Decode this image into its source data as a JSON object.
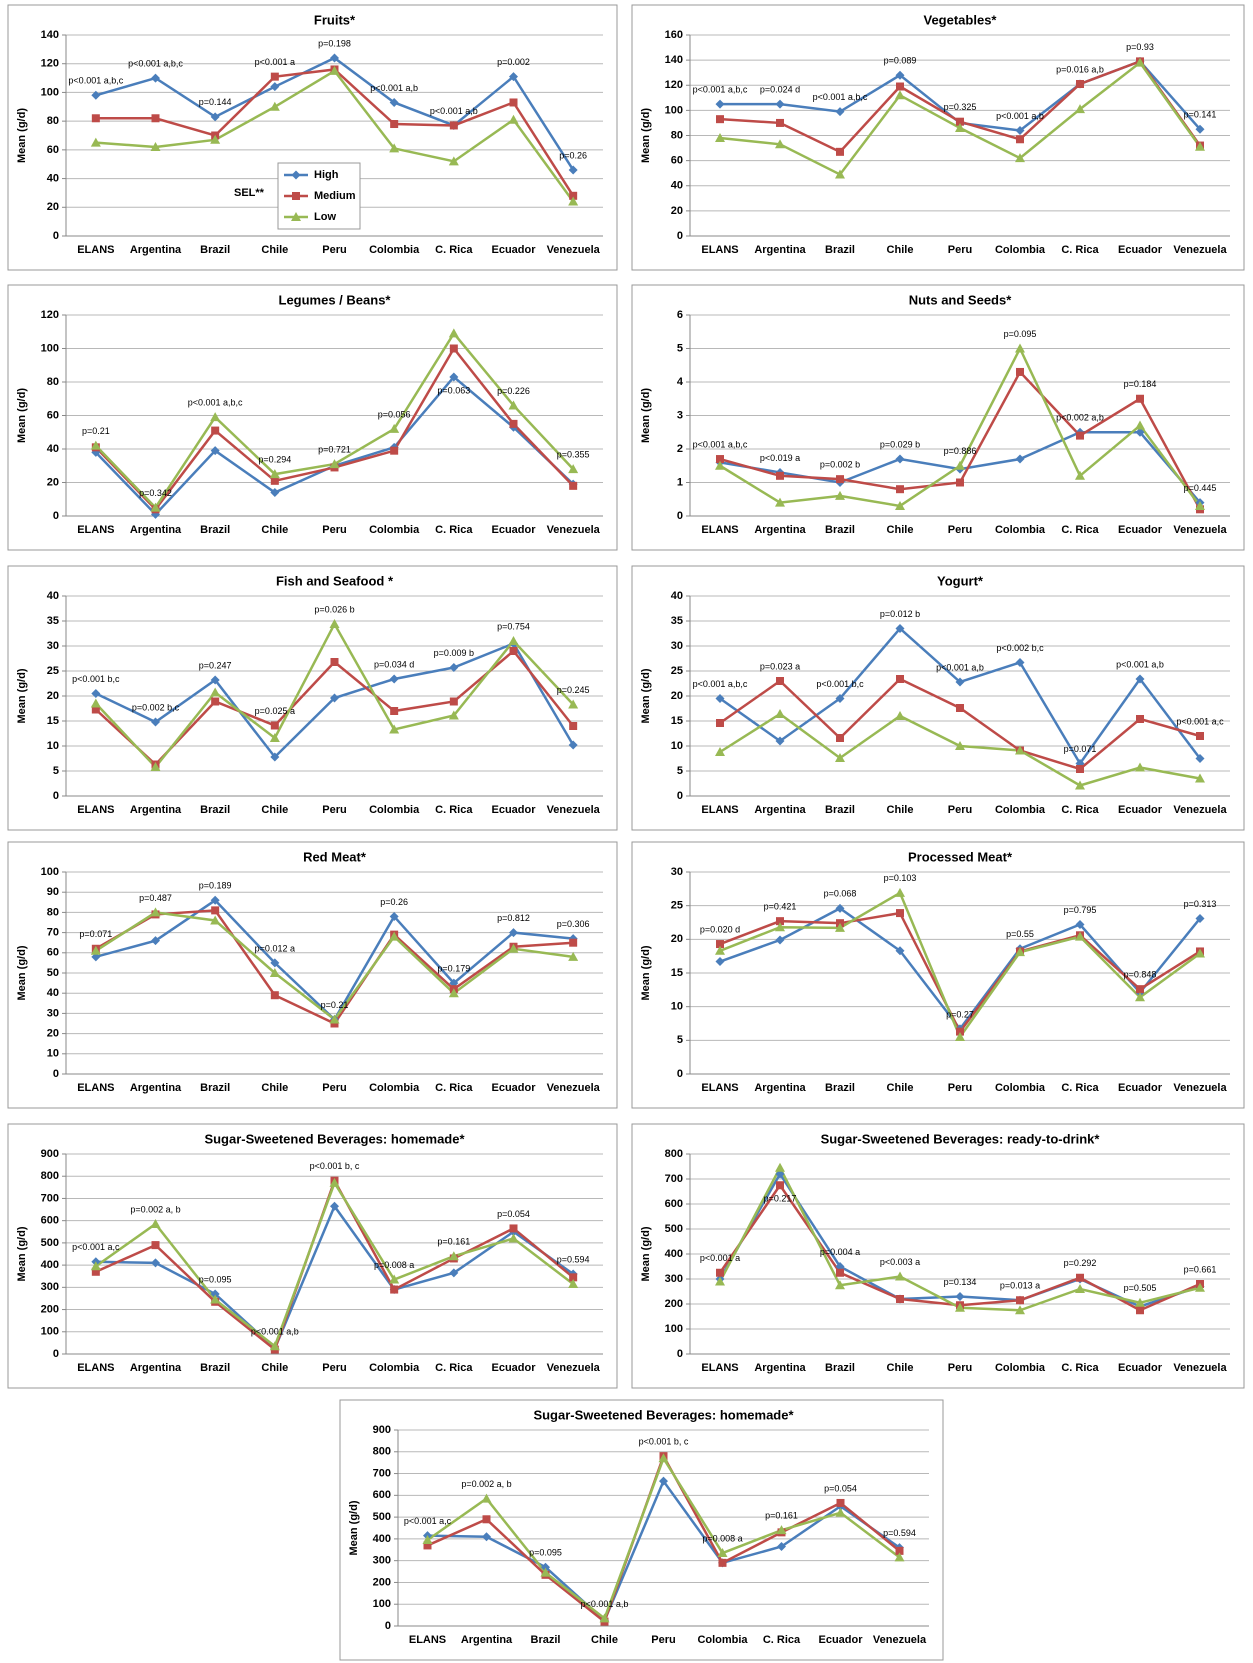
{
  "chart_data": [
    {
      "type": "line",
      "title": "Fruits*",
      "y_label": "Mean (g/d)",
      "legend": true,
      "legend_title": "SEL**",
      "categories": [
        "ELANS",
        "Argentina",
        "Brazil",
        "Chile",
        "Peru",
        "Colombia",
        "C. Rica",
        "Ecuador",
        "Venezuela"
      ],
      "ylim": [
        0,
        140
      ],
      "yticks": [
        0,
        20,
        40,
        60,
        80,
        100,
        120,
        140
      ],
      "grid": true,
      "series": [
        {
          "name": "High",
          "color": "#4a7ebb",
          "marker": "diamond",
          "values": [
            98,
            110,
            83,
            104,
            124,
            93,
            77,
            111,
            46
          ]
        },
        {
          "name": "Medium",
          "color": "#be4b48",
          "marker": "square",
          "values": [
            82,
            82,
            70,
            111,
            116,
            78,
            77,
            93,
            28
          ]
        },
        {
          "name": "Low",
          "color": "#98b954",
          "marker": "triangle",
          "values": [
            65,
            62,
            67,
            90,
            115,
            61,
            52,
            81,
            24
          ]
        }
      ],
      "annotations": [
        "p<0.001 a,b,c",
        "p<0.001 a,b,c",
        "p=0.144",
        "p<0.001 a",
        "p=0.198",
        "p<0.001 a,b",
        "p<0.001 a,b",
        "p=0.002",
        "p=0.26"
      ]
    },
    {
      "type": "line",
      "title": "Vegetables*",
      "y_label": "Mean (g/d)",
      "categories": [
        "ELANS",
        "Argentina",
        "Brazil",
        "Chile",
        "Peru",
        "Colombia",
        "C. Rica",
        "Ecuador",
        "Venezuela"
      ],
      "ylim": [
        0,
        160
      ],
      "yticks": [
        0,
        20,
        40,
        60,
        80,
        100,
        120,
        140,
        160
      ],
      "grid": true,
      "series": [
        {
          "color": "#4a7ebb",
          "marker": "diamond",
          "values": [
            105,
            105,
            99,
            128,
            90,
            84,
            121,
            139,
            85
          ]
        },
        {
          "color": "#be4b48",
          "marker": "square",
          "values": [
            93,
            90,
            67,
            119,
            91,
            77,
            121,
            139,
            72
          ]
        },
        {
          "color": "#98b954",
          "marker": "triangle",
          "values": [
            78,
            73,
            49,
            112,
            86,
            62,
            101,
            138,
            71
          ]
        }
      ],
      "annotations": [
        "p<0.001 a,b,c",
        "p=0.024 d",
        "p<0.001 a,b,c",
        "p=0.089",
        "p=0.325",
        "p<0.001 a,b",
        "p=0.016 a,b",
        "p=0.93",
        "p=0.141"
      ]
    },
    {
      "type": "line",
      "title": "Legumes / Beans*",
      "y_label": "Mean (g/d)",
      "categories": [
        "ELANS",
        "Argentina",
        "Brazil",
        "Chile",
        "Peru",
        "Colombia",
        "C. Rica",
        "Ecuador",
        "Venezuela"
      ],
      "ylim": [
        0,
        120
      ],
      "yticks": [
        0,
        20,
        40,
        60,
        80,
        100,
        120
      ],
      "grid": true,
      "series": [
        {
          "color": "#4a7ebb",
          "marker": "diamond",
          "values": [
            38,
            1,
            39,
            14,
            30,
            41,
            83,
            53,
            19
          ]
        },
        {
          "color": "#be4b48",
          "marker": "square",
          "values": [
            41,
            4,
            51,
            21,
            29,
            39,
            100,
            55,
            18
          ]
        },
        {
          "color": "#98b954",
          "marker": "triangle",
          "values": [
            42,
            5,
            59,
            25,
            31,
            52,
            109,
            66,
            28
          ]
        }
      ],
      "annotations": [
        "p=0.21",
        "p=0.342",
        "p<0.001 a,b,c",
        "p=0.294",
        "p=0.721",
        "p=0.056",
        "p=0.063",
        "p=0.226",
        "p=0.355"
      ]
    },
    {
      "type": "line",
      "title": "Nuts and Seeds*",
      "y_label": "Mean (g/d)",
      "categories": [
        "ELANS",
        "Argentina",
        "Brazil",
        "Chile",
        "Peru",
        "Colombia",
        "C. Rica",
        "Ecuador",
        "Venezuela"
      ],
      "ylim": [
        0,
        6
      ],
      "yticks": [
        0,
        1,
        2,
        3,
        4,
        5,
        6
      ],
      "grid": true,
      "series": [
        {
          "color": "#4a7ebb",
          "marker": "diamond",
          "values": [
            1.6,
            1.3,
            1.0,
            1.7,
            1.4,
            1.7,
            2.5,
            2.5,
            0.4
          ]
        },
        {
          "color": "#be4b48",
          "marker": "square",
          "values": [
            1.7,
            1.2,
            1.1,
            0.8,
            1.0,
            4.3,
            2.4,
            3.5,
            0.2
          ]
        },
        {
          "color": "#98b954",
          "marker": "triangle",
          "values": [
            1.5,
            0.4,
            0.6,
            0.3,
            1.5,
            5.0,
            1.2,
            2.7,
            0.3
          ]
        }
      ],
      "annotations": [
        "p<0.001 a,b,c",
        "p<0.019 a",
        "p=0.002 b",
        "p=0.029 b",
        "p=0.886",
        "p=0.095",
        "p<0.002 a,b",
        "p=0.184",
        "p=0.445"
      ]
    },
    {
      "type": "line",
      "title": "Fish and Seafood *",
      "y_label": "Mean (g/d)",
      "categories": [
        "ELANS",
        "Argentina",
        "Brazil",
        "Chile",
        "Peru",
        "Colombia",
        "C. Rica",
        "Ecuador",
        "Venezuela"
      ],
      "ylim": [
        0,
        40
      ],
      "yticks": [
        0,
        5,
        10,
        15,
        20,
        25,
        30,
        35,
        40
      ],
      "grid": true,
      "series": [
        {
          "color": "#4a7ebb",
          "marker": "diamond",
          "values": [
            20.5,
            14.8,
            23.2,
            7.8,
            19.6,
            23.4,
            25.7,
            30.5,
            10.2
          ]
        },
        {
          "color": "#be4b48",
          "marker": "square",
          "values": [
            17.3,
            6.3,
            18.9,
            14.1,
            26.8,
            17.0,
            18.9,
            29.0,
            14.0
          ]
        },
        {
          "color": "#98b954",
          "marker": "triangle",
          "values": [
            18.5,
            5.8,
            20.7,
            11.6,
            34.4,
            13.3,
            16.1,
            31.0,
            18.3
          ]
        }
      ],
      "annotations": [
        "p<0.001 b,c",
        "p=0.002 b,c",
        "p=0.247",
        "p=0.025 a",
        "p=0.026 b",
        "p=0.034 d",
        "p=0.009 b",
        "p=0.754",
        "p=0.245"
      ]
    },
    {
      "type": "line",
      "title": "Yogurt*",
      "y_label": "Mean (g/d)",
      "categories": [
        "ELANS",
        "Argentina",
        "Brazil",
        "Chile",
        "Peru",
        "Colombia",
        "C. Rica",
        "Ecuador",
        "Venezuela"
      ],
      "ylim": [
        0,
        40
      ],
      "yticks": [
        0,
        5,
        10,
        15,
        20,
        25,
        30,
        35,
        40
      ],
      "grid": true,
      "series": [
        {
          "color": "#4a7ebb",
          "marker": "diamond",
          "values": [
            19.5,
            11.0,
            19.5,
            33.5,
            22.8,
            26.7,
            6.5,
            23.4,
            7.5
          ]
        },
        {
          "color": "#be4b48",
          "marker": "square",
          "values": [
            14.6,
            23.0,
            11.6,
            23.4,
            17.6,
            9.1,
            5.4,
            15.4,
            12.0
          ]
        },
        {
          "color": "#98b954",
          "marker": "triangle",
          "values": [
            8.8,
            16.4,
            7.6,
            16.0,
            10.0,
            9.1,
            2.1,
            5.7,
            3.5
          ]
        }
      ],
      "annotations": [
        "p<0.001 a,b,c",
        "p=0.023 a",
        "p<0.001 b,c",
        "p=0.012 b",
        "p<0.001 a,b",
        "p<0.002 b,c",
        "p=0.071",
        "p<0.001 a,b",
        "p<0.001 a,c"
      ]
    },
    {
      "type": "line",
      "title": "Red Meat*",
      "y_label": "Mean (g/d)",
      "categories": [
        "ELANS",
        "Argentina",
        "Brazil",
        "Chile",
        "Peru",
        "Colombia",
        "C. Rica",
        "Ecuador",
        "Venezuela"
      ],
      "ylim": [
        0,
        100
      ],
      "yticks": [
        0,
        10,
        20,
        30,
        40,
        50,
        60,
        70,
        80,
        90,
        100
      ],
      "grid": true,
      "series": [
        {
          "color": "#4a7ebb",
          "marker": "diamond",
          "values": [
            58,
            66,
            86,
            55,
            27,
            78,
            45,
            70,
            67
          ]
        },
        {
          "color": "#be4b48",
          "marker": "square",
          "values": [
            62,
            79,
            81,
            39,
            25,
            69,
            42,
            63,
            65
          ]
        },
        {
          "color": "#98b954",
          "marker": "triangle",
          "values": [
            61,
            80,
            76,
            50,
            27,
            68,
            40,
            62,
            58
          ]
        }
      ],
      "annotations": [
        "p=0.071",
        "p=0.487",
        "p=0.189",
        "p=0.012 a",
        "p=0.21",
        "p=0.26",
        "p=0.179",
        "p=0.812",
        "p=0.306"
      ]
    },
    {
      "type": "line",
      "title": "Processed Meat*",
      "y_label": "Mean (g/d)",
      "categories": [
        "ELANS",
        "Argentina",
        "Brazil",
        "Chile",
        "Peru",
        "Colombia",
        "C. Rica",
        "Ecuador",
        "Venezuela"
      ],
      "ylim": [
        0,
        30
      ],
      "yticks": [
        0,
        5,
        10,
        15,
        20,
        25,
        30
      ],
      "grid": true,
      "series": [
        {
          "color": "#4a7ebb",
          "marker": "diamond",
          "values": [
            16.7,
            19.9,
            24.6,
            18.3,
            6.7,
            18.6,
            22.2,
            12.1,
            23.1
          ]
        },
        {
          "color": "#be4b48",
          "marker": "square",
          "values": [
            19.3,
            22.7,
            22.4,
            23.9,
            6.3,
            18.2,
            20.6,
            12.6,
            18.2
          ]
        },
        {
          "color": "#98b954",
          "marker": "triangle",
          "values": [
            18.3,
            21.8,
            21.7,
            26.9,
            5.5,
            18.1,
            20.4,
            11.4,
            17.9
          ]
        }
      ],
      "annotations": [
        "p=0.020 d",
        "p=0.421",
        "p=0.068",
        "p=0.103",
        "p=0.27",
        "p=0.55",
        "p=0.795",
        "p=0.848",
        "p=0.313"
      ]
    },
    {
      "type": "line",
      "title": "Sugar-Sweetened Beverages: homemade*",
      "y_label": "Mean (g/d)",
      "categories": [
        "ELANS",
        "Argentina",
        "Brazil",
        "Chile",
        "Peru",
        "Colombia",
        "C. Rica",
        "Ecuador",
        "Venezuela"
      ],
      "ylim": [
        0,
        900
      ],
      "yticks": [
        0,
        100,
        200,
        300,
        400,
        500,
        600,
        700,
        800,
        900
      ],
      "grid": true,
      "series": [
        {
          "color": "#4a7ebb",
          "marker": "diamond",
          "values": [
            415,
            410,
            270,
            25,
            665,
            290,
            365,
            550,
            360
          ]
        },
        {
          "color": "#be4b48",
          "marker": "square",
          "values": [
            370,
            490,
            235,
            20,
            780,
            290,
            430,
            565,
            345
          ]
        },
        {
          "color": "#98b954",
          "marker": "triangle",
          "values": [
            395,
            585,
            245,
            35,
            770,
            335,
            440,
            520,
            315
          ]
        }
      ],
      "annotations": [
        "p<0.001 a,c",
        "p=0.002 a, b",
        "p=0.095",
        "p<0.001 a,b",
        "p<0.001 b, c",
        "p=0.008 a",
        "p=0.161",
        "p=0.054",
        "p=0.594"
      ]
    },
    {
      "type": "line",
      "title": "Sugar-Sweetened Beverages: ready-to-drink*",
      "y_label": "Mean (g/d)",
      "categories": [
        "ELANS",
        "Argentina",
        "Brazil",
        "Chile",
        "Peru",
        "Colombia",
        "C. Rica",
        "Ecuador",
        "Venezuela"
      ],
      "ylim": [
        0,
        800
      ],
      "yticks": [
        0,
        100,
        200,
        300,
        400,
        500,
        600,
        700,
        800
      ],
      "grid": true,
      "series": [
        {
          "color": "#4a7ebb",
          "marker": "diamond",
          "values": [
            300,
            720,
            350,
            220,
            230,
            215,
            300,
            190,
            270
          ]
        },
        {
          "color": "#be4b48",
          "marker": "square",
          "values": [
            325,
            675,
            325,
            220,
            195,
            215,
            305,
            175,
            280
          ]
        },
        {
          "color": "#98b954",
          "marker": "triangle",
          "values": [
            290,
            745,
            275,
            310,
            185,
            175,
            260,
            205,
            265
          ]
        }
      ],
      "annotations": [
        "p<0.001 a",
        "p=0.217",
        "p=0.004 a",
        "p<0.003 a",
        "p=0.134",
        "p=0.013 a",
        "p=0.292",
        "p=0.505",
        "p=0.661"
      ]
    },
    {
      "type": "line",
      "title": "Sugar-Sweetened Beverages: homemade*",
      "y_label": "Mean (g/d)",
      "categories": [
        "ELANS",
        "Argentina",
        "Brazil",
        "Chile",
        "Peru",
        "Colombia",
        "C. Rica",
        "Ecuador",
        "Venezuela"
      ],
      "ylim": [
        0,
        900
      ],
      "yticks": [
        0,
        100,
        200,
        300,
        400,
        500,
        600,
        700,
        800,
        900
      ],
      "grid": true,
      "series": [
        {
          "color": "#4a7ebb",
          "marker": "diamond",
          "values": [
            415,
            410,
            270,
            25,
            665,
            290,
            365,
            550,
            360
          ]
        },
        {
          "color": "#be4b48",
          "marker": "square",
          "values": [
            370,
            490,
            235,
            20,
            780,
            290,
            430,
            565,
            345
          ]
        },
        {
          "color": "#98b954",
          "marker": "triangle",
          "values": [
            395,
            585,
            245,
            35,
            770,
            335,
            440,
            520,
            315
          ]
        }
      ],
      "annotations": [
        "p<0.001 a,c",
        "p=0.002 a, b",
        "p=0.095",
        "p<0.001 a,b",
        "p<0.001 b, c",
        "p=0.008 a",
        "p=0.161",
        "p=0.054",
        "p=0.594"
      ]
    }
  ]
}
